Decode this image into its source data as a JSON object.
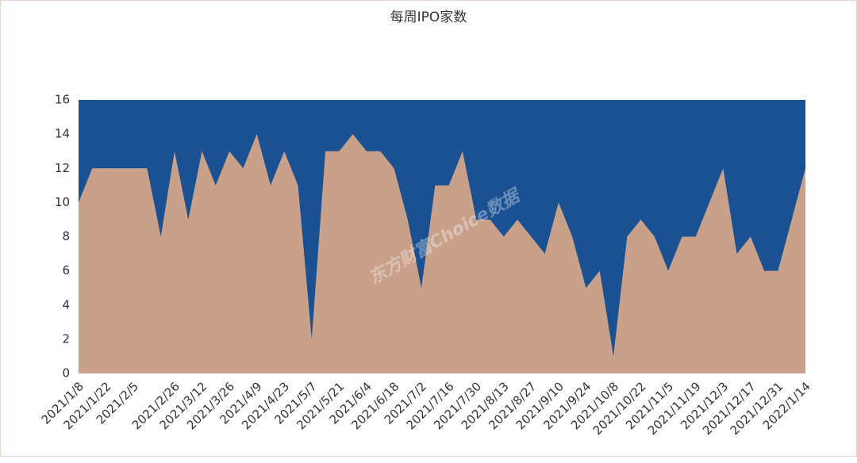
{
  "chart_data": {
    "type": "area",
    "title": "每周IPO家数",
    "watermark": "东方财富Choice数据",
    "categories": [
      "2021/1/8",
      null,
      "2021/1/22",
      null,
      "2021/2/5",
      null,
      null,
      "2021/2/26",
      null,
      "2021/3/12",
      null,
      "2021/3/26",
      null,
      "2021/4/9",
      null,
      "2021/4/23",
      null,
      "2021/5/7",
      null,
      "2021/5/21",
      null,
      "2021/6/4",
      null,
      "2021/6/18",
      null,
      "2021/7/2",
      null,
      "2021/7/16",
      null,
      "2021/7/30",
      null,
      "2021/8/13",
      null,
      "2021/8/27",
      null,
      "2021/9/10",
      null,
      "2021/9/24",
      null,
      "2021/10/8",
      null,
      "2021/10/22",
      null,
      "2021/11/5",
      null,
      "2021/11/19",
      null,
      "2021/12/3",
      null,
      "2021/12/17",
      null,
      "2021/12/31",
      null,
      "2022/1/14"
    ],
    "values": [
      10,
      12,
      12,
      12,
      12,
      12,
      8,
      13,
      9,
      13,
      11,
      13,
      12,
      14,
      11,
      13,
      11,
      2,
      13,
      13,
      14,
      13,
      13,
      12,
      9,
      5,
      11,
      11,
      13,
      9,
      9,
      8,
      9,
      8,
      7,
      10,
      8,
      5,
      6,
      1,
      8,
      9,
      8,
      6,
      8,
      8,
      10,
      12,
      7,
      8,
      6,
      6,
      9,
      12
    ],
    "color": "#c9a08a",
    "background_color": "#1a5193",
    "ylim": [
      0,
      16
    ],
    "yticks": [
      0,
      2,
      4,
      6,
      8,
      10,
      12,
      14,
      16
    ]
  }
}
